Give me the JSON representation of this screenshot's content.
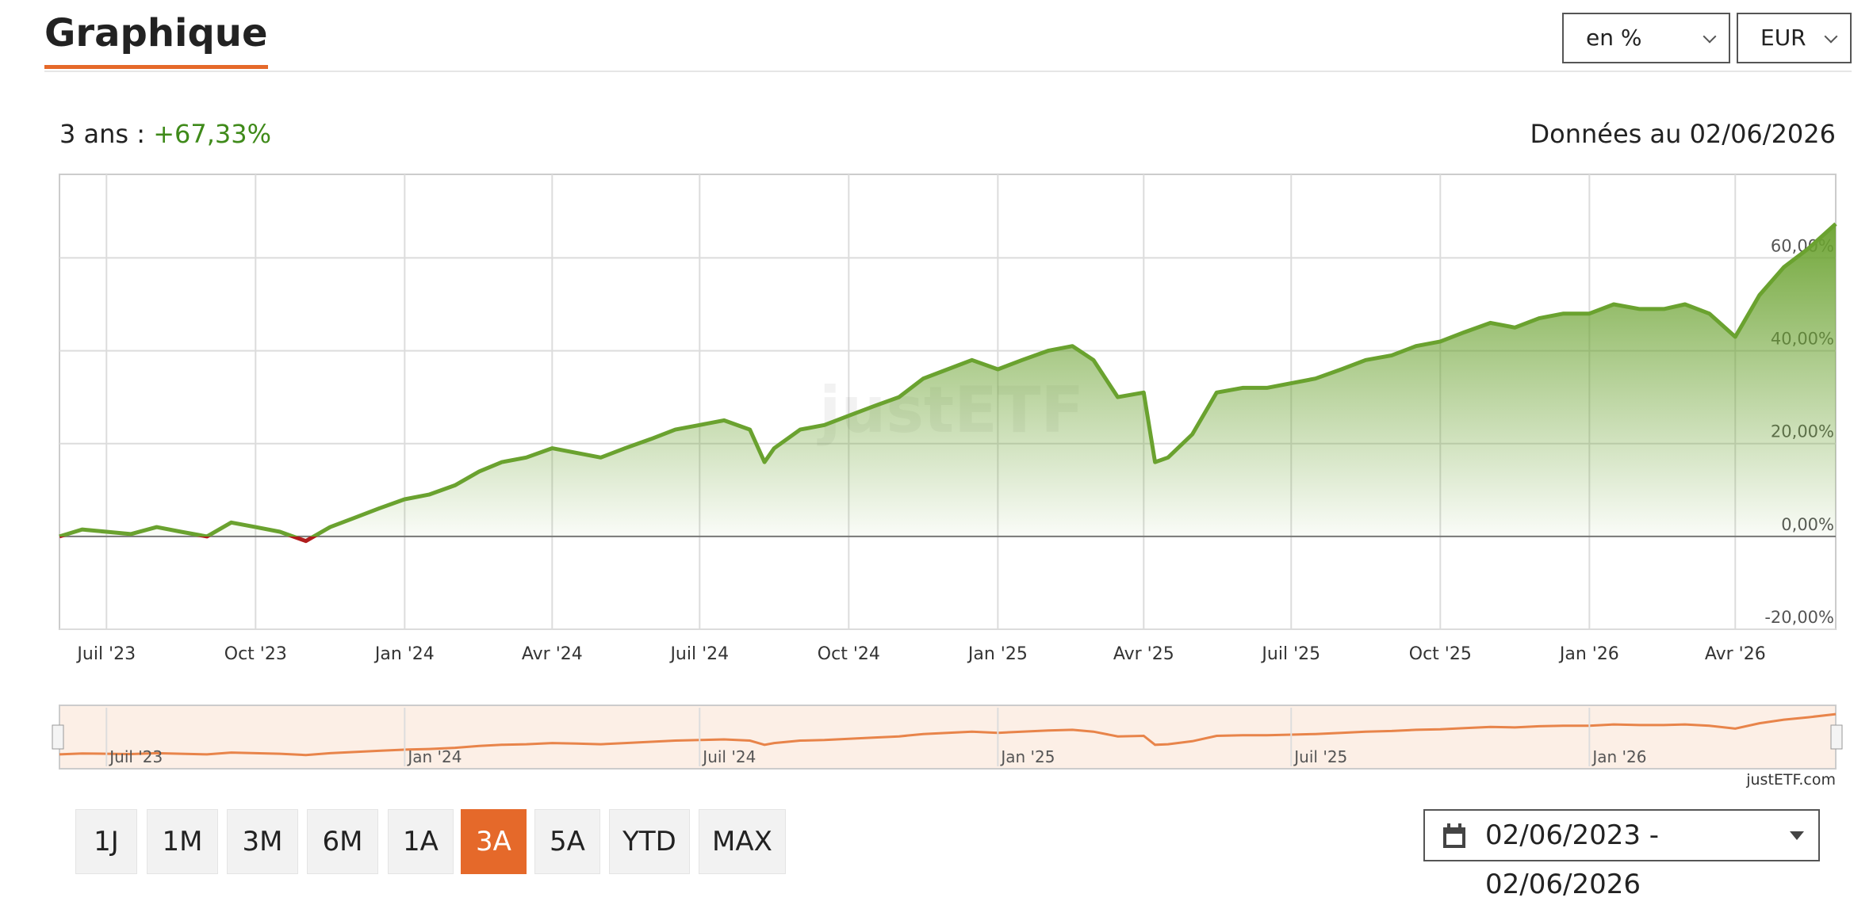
{
  "header": {
    "title": "Graphique",
    "selects": [
      "en %",
      "EUR"
    ]
  },
  "summary": {
    "period": "3 ans :",
    "performance": "+67,33%",
    "as_of": "Données au 02/06/2026"
  },
  "chart_data": {
    "type": "area",
    "color": "#6aa22f",
    "negative_color": "#b01c1c",
    "grid": true,
    "watermark": "justETF",
    "x": [
      "2023-06-02",
      "2023-06-16",
      "2023-07-01",
      "2023-07-16",
      "2023-08-01",
      "2023-08-16",
      "2023-09-01",
      "2023-09-16",
      "2023-10-01",
      "2023-10-16",
      "2023-11-01",
      "2023-11-16",
      "2023-12-01",
      "2023-12-16",
      "2024-01-01",
      "2024-01-16",
      "2024-02-01",
      "2024-02-16",
      "2024-03-01",
      "2024-03-16",
      "2024-04-01",
      "2024-04-16",
      "2024-05-01",
      "2024-05-16",
      "2024-06-01",
      "2024-06-16",
      "2024-07-01",
      "2024-07-16",
      "2024-08-01",
      "2024-08-10",
      "2024-08-16",
      "2024-09-01",
      "2024-09-16",
      "2024-10-01",
      "2024-10-16",
      "2024-11-01",
      "2024-11-16",
      "2024-12-01",
      "2024-12-16",
      "2025-01-01",
      "2025-01-16",
      "2025-02-01",
      "2025-02-16",
      "2025-03-01",
      "2025-03-16",
      "2025-04-01",
      "2025-04-08",
      "2025-04-16",
      "2025-05-01",
      "2025-05-16",
      "2025-06-01",
      "2025-06-16",
      "2025-07-01",
      "2025-07-16",
      "2025-08-01",
      "2025-08-16",
      "2025-09-01",
      "2025-09-16",
      "2025-10-01",
      "2025-10-16",
      "2025-11-01",
      "2025-11-16",
      "2025-12-01",
      "2025-12-16",
      "2026-01-01",
      "2026-01-16",
      "2026-02-01",
      "2026-02-16",
      "2026-03-01",
      "2026-03-16",
      "2026-04-01",
      "2026-04-16",
      "2026-05-01",
      "2026-05-16",
      "2026-06-02"
    ],
    "values": [
      0,
      1.5,
      1,
      0.5,
      2,
      1,
      0,
      3,
      2,
      1,
      -1,
      2,
      4,
      6,
      8,
      9,
      11,
      14,
      16,
      17,
      19,
      18,
      17,
      19,
      21,
      23,
      24,
      25,
      23,
      16,
      19,
      23,
      24,
      26,
      28,
      30,
      34,
      36,
      38,
      36,
      38,
      40,
      41,
      38,
      30,
      31,
      16,
      17,
      22,
      31,
      32,
      32,
      33,
      34,
      36,
      38,
      39,
      41,
      42,
      44,
      46,
      45,
      47,
      48,
      48,
      50,
      49,
      49,
      50,
      48,
      43,
      52,
      58,
      62,
      67.33
    ],
    "xlim": [
      "2023-06-02",
      "2026-06-02"
    ],
    "xticks": [
      {
        "value": "2023-07-01",
        "label": "Juil '23"
      },
      {
        "value": "2023-10-01",
        "label": "Oct '23"
      },
      {
        "value": "2024-01-01",
        "label": "Jan '24"
      },
      {
        "value": "2024-04-01",
        "label": "Avr '24"
      },
      {
        "value": "2024-07-01",
        "label": "Juil '24"
      },
      {
        "value": "2024-10-01",
        "label": "Oct '24"
      },
      {
        "value": "2025-01-01",
        "label": "Jan '25"
      },
      {
        "value": "2025-04-01",
        "label": "Avr '25"
      },
      {
        "value": "2025-07-01",
        "label": "Juil '25"
      },
      {
        "value": "2025-10-01",
        "label": "Oct '25"
      },
      {
        "value": "2026-01-01",
        "label": "Jan '26"
      },
      {
        "value": "2026-04-01",
        "label": "Avr '26"
      }
    ],
    "ylim": [
      -20,
      78
    ],
    "yticks": [
      {
        "value": -20,
        "label": "-20,00%"
      },
      {
        "value": 0,
        "label": "0,00%"
      },
      {
        "value": 20,
        "label": "20,00%"
      },
      {
        "value": 40,
        "label": "40,00%"
      },
      {
        "value": 60,
        "label": "60,00%"
      }
    ],
    "navigator": {
      "color": "#e8844a",
      "xticks": [
        {
          "value": "2023-07-01",
          "label": "Juil '23"
        },
        {
          "value": "2024-01-01",
          "label": "Jan '24"
        },
        {
          "value": "2024-07-01",
          "label": "Juil '24"
        },
        {
          "value": "2025-01-01",
          "label": "Jan '25"
        },
        {
          "value": "2025-07-01",
          "label": "Juil '25"
        },
        {
          "value": "2026-01-01",
          "label": "Jan '26"
        }
      ]
    },
    "credit": "justETF.com"
  },
  "controls": {
    "buttons": [
      "1J",
      "1M",
      "3M",
      "6M",
      "1A",
      "3A",
      "5A",
      "YTD",
      "MAX"
    ],
    "active": "3A",
    "date_range": "02/06/2023 - 02/06/2026"
  }
}
